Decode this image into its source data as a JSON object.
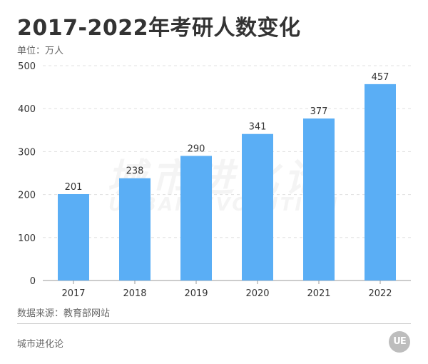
{
  "title": "2017-2022年考研人数变化",
  "unit_label": "单位：万人",
  "source_label": "数据来源：教育部网站",
  "brand_label": "城市进化论",
  "logo_text": "UE",
  "watermark": {
    "cn": "城市进化论",
    "en": "URBAN EVOLUTION"
  },
  "colors": {
    "bar": "#5aaef5",
    "grid": "#e0e0e0",
    "axis": "#999999",
    "text": "#333333"
  },
  "chart_data": {
    "type": "bar",
    "title": "2017-2022年考研人数变化",
    "xlabel": "",
    "ylabel": "",
    "categories": [
      "2017",
      "2018",
      "2019",
      "2020",
      "2021",
      "2022"
    ],
    "values": [
      201,
      238,
      290,
      341,
      377,
      457
    ],
    "ylim": [
      0,
      500
    ],
    "yticks": [
      0,
      100,
      200,
      300,
      400,
      500
    ],
    "grid": true,
    "data_labels": true
  }
}
